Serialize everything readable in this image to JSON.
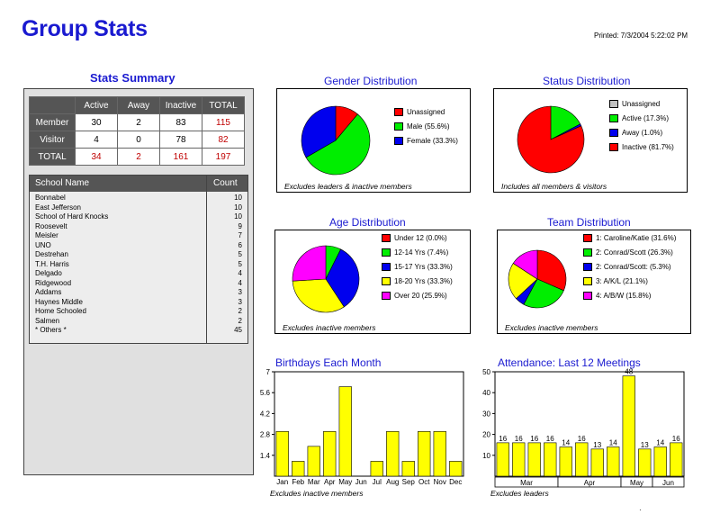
{
  "header": {
    "title": "Group Stats",
    "printed": "Printed: 7/3/2004 5:22:02 PM"
  },
  "stats_summary": {
    "title": "Stats Summary",
    "columns": [
      "",
      "Active",
      "Away",
      "Inactive",
      "TOTAL"
    ],
    "rows": [
      {
        "label": "Member",
        "values": [
          "30",
          "2",
          "83",
          "115"
        ]
      },
      {
        "label": "Visitor",
        "values": [
          "4",
          "0",
          "78",
          "82"
        ]
      },
      {
        "label": "TOTAL",
        "values": [
          "34",
          "2",
          "161",
          "197"
        ]
      }
    ]
  },
  "schools": {
    "header_name": "School Name",
    "header_count": "Count",
    "rows": [
      {
        "name": "Bonnabel",
        "count": "10"
      },
      {
        "name": "East Jefferson",
        "count": "10"
      },
      {
        "name": "School of Hard Knocks",
        "count": "10"
      },
      {
        "name": "Roosevelt",
        "count": "9"
      },
      {
        "name": "Meisler",
        "count": "7"
      },
      {
        "name": "UNO",
        "count": "6"
      },
      {
        "name": "Destrehan",
        "count": "5"
      },
      {
        "name": "T.H. Harris",
        "count": "5"
      },
      {
        "name": "Delgado",
        "count": "4"
      },
      {
        "name": "Ridgewood",
        "count": "4"
      },
      {
        "name": "Addams",
        "count": "3"
      },
      {
        "name": "Haynes Middle",
        "count": "3"
      },
      {
        "name": "Home Schooled",
        "count": "2"
      },
      {
        "name": "Salmen",
        "count": "2"
      },
      {
        "name": "* Others *",
        "count": "45"
      }
    ]
  },
  "chart_data": [
    {
      "type": "pie",
      "title": "Gender Distribution",
      "labels": [
        "Unassigned",
        "Male (55.6%)",
        "Female (33.3%)"
      ],
      "values": [
        11.1,
        55.6,
        33.3
      ],
      "colors": [
        "#ff0000",
        "#00ee00",
        "#0000ee"
      ],
      "note": "Excludes leaders & inactive members"
    },
    {
      "type": "pie",
      "title": "Status Distribution",
      "labels": [
        "Unassigned",
        "Active (17.3%)",
        "Away (1.0%)",
        "Inactive (81.7%)"
      ],
      "values": [
        0,
        17.3,
        1.0,
        81.7
      ],
      "colors": [
        "#c0c0c0",
        "#00ee00",
        "#0000ee",
        "#ff0000"
      ],
      "note": "Includes all members & visitors"
    },
    {
      "type": "pie",
      "title": "Age Distribution",
      "labels": [
        "Under 12 (0.0%)",
        "12-14 Yrs (7.4%)",
        "15-17 Yrs (33.3%)",
        "18-20 Yrs (33.3%)",
        "Over 20 (25.9%)"
      ],
      "values": [
        0,
        7.4,
        33.3,
        33.3,
        25.9
      ],
      "colors": [
        "#ff0000",
        "#00ee00",
        "#0000ee",
        "#ffff00",
        "#ff00ff"
      ],
      "note": "Excludes inactive members"
    },
    {
      "type": "pie",
      "title": "Team Distribution",
      "labels": [
        "1: Caroline/Katie (31.6%)",
        "2: Conrad/Scott (26.3%)",
        "2: Conrad/Scott: (5.3%)",
        "3: A/K/L (21.1%)",
        "4: A/B/W (15.8%)"
      ],
      "values": [
        31.6,
        26.3,
        5.3,
        21.1,
        15.8
      ],
      "colors": [
        "#ff0000",
        "#00ee00",
        "#0000ee",
        "#ffff00",
        "#ff00ff"
      ],
      "note": "Excludes inactive members"
    },
    {
      "type": "bar",
      "title": "Birthdays Each Month",
      "categories": [
        "Jan",
        "Feb",
        "Mar",
        "Apr",
        "May",
        "Jun",
        "Jul",
        "Aug",
        "Sep",
        "Oct",
        "Nov",
        "Dec"
      ],
      "values": [
        3,
        1,
        2,
        3,
        6,
        0,
        1,
        3,
        1,
        3,
        3,
        1
      ],
      "ylim": [
        0,
        7
      ],
      "yticks": [
        "1.4",
        "2.8",
        "4.2",
        "5.6",
        "7"
      ],
      "color": "#ffff00",
      "note": "Excludes inactive members"
    },
    {
      "type": "bar",
      "title": "Attendance: Last 12 Meetings",
      "values": [
        16,
        16,
        16,
        16,
        14,
        16,
        13,
        14,
        48,
        13,
        14,
        16
      ],
      "value_labels": [
        "16",
        "16",
        "16",
        "16",
        "14",
        "16",
        "13",
        "14",
        "48",
        "13",
        "14",
        "16"
      ],
      "month_groups": [
        {
          "label": "Mar",
          "count": 4
        },
        {
          "label": "Apr",
          "count": 4
        },
        {
          "label": "May",
          "count": 2
        },
        {
          "label": "Jun",
          "count": 2
        }
      ],
      "ylim": [
        0,
        50
      ],
      "yticks": [
        "10",
        "20",
        "30",
        "40",
        "50"
      ],
      "color": "#ffff00",
      "note": "Excludes leaders"
    }
  ]
}
